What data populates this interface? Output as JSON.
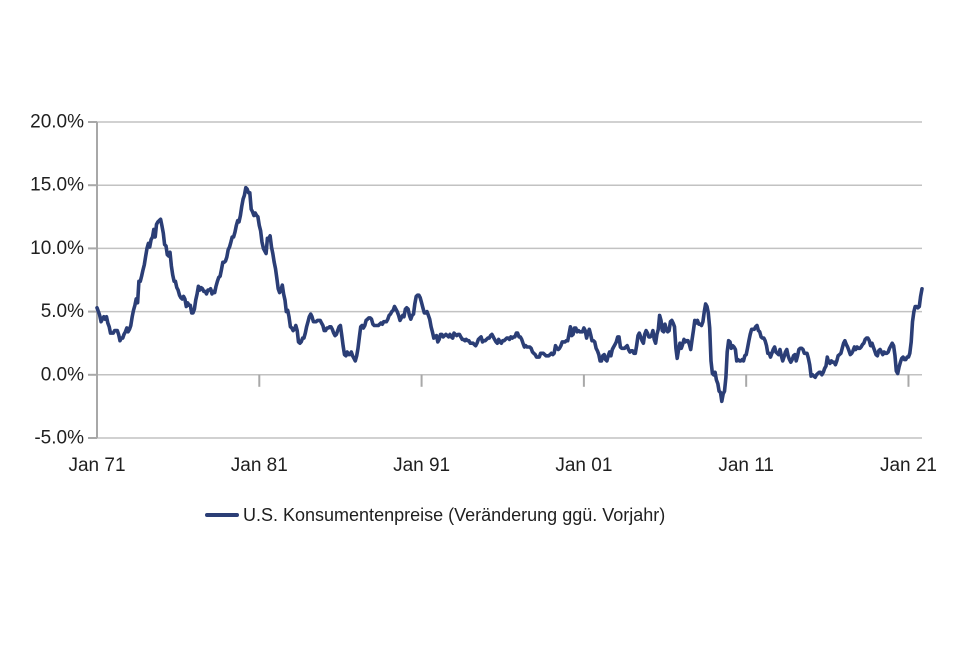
{
  "legend": {
    "label": "U.S. Konsumentenpreise (Veränderung ggü. Vorjahr)"
  },
  "chart_data": {
    "type": "line",
    "title": "",
    "xlabel": "",
    "ylabel": "",
    "x_unit": "monthly",
    "x_start_label": "Jan 71",
    "x_end_label": "Jan 21",
    "y_range": [
      -5.0,
      20.0
    ],
    "grid": "horizontal",
    "legend_position": "bottom",
    "colors": {
      "line": "#2b3e76",
      "grid": "#c2c2c2",
      "axis": "#a8a8a8",
      "text": "#1f1f1f"
    },
    "y_ticks": [
      {
        "label": "20.0%",
        "value": 20.0
      },
      {
        "label": "15.0%",
        "value": 15.0
      },
      {
        "label": "10.0%",
        "value": 10.0
      },
      {
        "label": "5.0%",
        "value": 5.0
      },
      {
        "label": "0.0%",
        "value": 0.0
      },
      {
        "label": "-5.0%",
        "value": -5.0
      }
    ],
    "x_ticks": [
      {
        "label": "Jan 71",
        "month_index": 0
      },
      {
        "label": "Jan 81",
        "month_index": 120
      },
      {
        "label": "Jan 91",
        "month_index": 240
      },
      {
        "label": "Jan 01",
        "month_index": 360
      },
      {
        "label": "Jan 11",
        "month_index": 480
      },
      {
        "label": "Jan 21",
        "month_index": 600
      }
    ],
    "series": [
      {
        "name": "U.S. Konsumentenpreise (Veränderung ggü. Vorjahr)",
        "x_monthly_from": "Jan 1971",
        "x_monthly_to": "Nov 2021",
        "values": [
          5.3,
          5.0,
          4.7,
          4.2,
          4.4,
          4.6,
          4.4,
          4.6,
          4.1,
          3.8,
          3.3,
          3.3,
          3.3,
          3.5,
          3.5,
          3.5,
          3.2,
          2.7,
          2.9,
          2.9,
          3.2,
          3.4,
          3.7,
          3.4,
          3.6,
          3.9,
          4.6,
          5.1,
          5.5,
          6.0,
          5.7,
          7.4,
          7.4,
          7.8,
          8.3,
          8.7,
          9.4,
          10.0,
          10.4,
          10.1,
          10.7,
          10.9,
          11.5,
          10.9,
          11.9,
          12.1,
          12.2,
          12.3,
          11.8,
          11.2,
          10.3,
          10.2,
          9.5,
          9.4,
          9.7,
          8.6,
          7.9,
          7.4,
          7.4,
          6.9,
          6.7,
          6.3,
          6.1,
          6.0,
          6.2,
          6.0,
          5.4,
          5.7,
          5.5,
          5.5,
          4.9,
          4.9,
          5.2,
          5.9,
          6.4,
          7.0,
          6.7,
          6.9,
          6.8,
          6.6,
          6.6,
          6.4,
          6.7,
          6.7,
          6.8,
          6.4,
          6.6,
          6.5,
          7.0,
          7.4,
          7.7,
          7.8,
          8.3,
          8.9,
          8.9,
          9.0,
          9.3,
          9.9,
          10.1,
          10.5,
          10.9,
          10.9,
          11.3,
          11.8,
          12.2,
          12.1,
          12.6,
          13.3,
          13.9,
          14.2,
          14.8,
          14.7,
          14.4,
          14.4,
          13.1,
          12.9,
          12.6,
          12.8,
          12.6,
          12.5,
          11.8,
          11.4,
          10.5,
          10.0,
          9.8,
          9.6,
          10.8,
          10.8,
          11.0,
          10.1,
          9.6,
          8.9,
          8.4,
          7.6,
          6.8,
          6.5,
          6.7,
          7.1,
          6.4,
          5.9,
          5.0,
          5.1,
          4.6,
          3.8,
          3.7,
          3.5,
          3.6,
          3.9,
          3.5,
          2.6,
          2.5,
          2.6,
          2.9,
          2.9,
          3.3,
          3.8,
          4.2,
          4.6,
          4.8,
          4.6,
          4.2,
          4.2,
          4.2,
          4.3,
          4.3,
          4.3,
          4.1,
          3.9,
          3.5,
          3.5,
          3.7,
          3.7,
          3.8,
          3.8,
          3.6,
          3.3,
          3.1,
          3.2,
          3.5,
          3.8,
          3.9,
          3.1,
          2.3,
          1.6,
          1.5,
          1.8,
          1.6,
          1.6,
          1.8,
          1.5,
          1.3,
          1.1,
          1.5,
          2.1,
          3.0,
          3.8,
          3.9,
          3.7,
          3.9,
          4.3,
          4.4,
          4.5,
          4.5,
          4.4,
          4.0,
          3.9,
          3.9,
          3.9,
          3.9,
          4.0,
          4.1,
          4.0,
          4.2,
          4.2,
          4.2,
          4.4,
          4.7,
          4.8,
          5.0,
          5.1,
          5.4,
          5.2,
          5.0,
          4.7,
          4.3,
          4.5,
          4.7,
          4.6,
          5.2,
          5.3,
          5.2,
          4.7,
          4.4,
          4.7,
          4.8,
          5.6,
          6.2,
          6.3,
          6.3,
          6.1,
          5.7,
          5.3,
          4.9,
          4.9,
          5.0,
          4.7,
          4.4,
          3.8,
          3.4,
          2.9,
          3.0,
          3.1,
          2.6,
          2.8,
          3.2,
          3.2,
          3.0,
          3.1,
          3.2,
          3.1,
          3.0,
          3.2,
          3.0,
          2.9,
          3.3,
          3.2,
          3.1,
          3.2,
          3.2,
          3.0,
          2.8,
          2.8,
          2.7,
          2.8,
          2.7,
          2.7,
          2.5,
          2.5,
          2.5,
          2.4,
          2.3,
          2.5,
          2.8,
          2.9,
          3.0,
          2.6,
          2.7,
          2.7,
          2.8,
          2.9,
          2.9,
          3.1,
          3.2,
          3.0,
          2.8,
          2.6,
          2.5,
          2.8,
          2.6,
          2.5,
          2.7,
          2.7,
          2.8,
          2.9,
          2.9,
          2.8,
          3.0,
          2.9,
          3.0,
          3.0,
          3.3,
          3.3,
          3.0,
          3.0,
          2.8,
          2.5,
          2.2,
          2.3,
          2.2,
          2.2,
          2.2,
          2.1,
          1.8,
          1.7,
          1.6,
          1.4,
          1.4,
          1.4,
          1.7,
          1.7,
          1.7,
          1.6,
          1.5,
          1.5,
          1.5,
          1.6,
          1.7,
          1.6,
          1.7,
          2.3,
          2.1,
          2.0,
          2.1,
          2.3,
          2.6,
          2.6,
          2.6,
          2.7,
          2.7,
          3.2,
          3.8,
          3.1,
          3.2,
          3.7,
          3.7,
          3.4,
          3.5,
          3.4,
          3.4,
          3.4,
          3.7,
          3.5,
          2.9,
          3.3,
          3.6,
          3.2,
          2.7,
          2.7,
          2.6,
          2.1,
          1.9,
          1.6,
          1.1,
          1.1,
          1.5,
          1.6,
          1.2,
          1.1,
          1.5,
          1.8,
          1.5,
          2.0,
          2.2,
          2.4,
          2.6,
          3.0,
          3.0,
          2.2,
          2.1,
          2.1,
          2.1,
          2.2,
          2.3,
          2.0,
          1.8,
          1.9,
          1.9,
          1.7,
          1.7,
          2.3,
          3.1,
          3.3,
          3.0,
          2.7,
          2.5,
          3.2,
          3.5,
          3.3,
          3.0,
          3.0,
          3.1,
          3.5,
          2.8,
          2.5,
          3.2,
          3.6,
          4.7,
          4.3,
          3.5,
          3.4,
          4.0,
          3.6,
          3.4,
          3.5,
          4.2,
          4.3,
          4.1,
          3.8,
          2.1,
          1.3,
          2.0,
          2.5,
          2.1,
          2.4,
          2.8,
          2.6,
          2.7,
          2.7,
          2.4,
          2.0,
          2.8,
          3.5,
          4.3,
          4.1,
          4.3,
          4.0,
          4.0,
          3.9,
          4.2,
          5.0,
          5.6,
          5.4,
          4.9,
          3.7,
          1.1,
          0.1,
          0.0,
          0.2,
          -0.4,
          -0.7,
          -1.3,
          -1.4,
          -2.1,
          -1.5,
          -1.3,
          -0.2,
          1.8,
          2.7,
          2.6,
          2.1,
          2.3,
          2.2,
          2.0,
          1.1,
          1.2,
          1.1,
          1.1,
          1.2,
          1.1,
          1.5,
          1.6,
          2.1,
          2.7,
          3.2,
          3.6,
          3.6,
          3.6,
          3.8,
          3.9,
          3.5,
          3.4,
          3.0,
          2.9,
          2.9,
          2.7,
          2.3,
          1.7,
          1.7,
          1.4,
          1.7,
          2.0,
          2.2,
          1.8,
          1.7,
          1.6,
          2.0,
          1.5,
          1.1,
          1.4,
          1.8,
          2.0,
          1.5,
          1.2,
          1.0,
          1.2,
          1.5,
          1.6,
          1.1,
          1.5,
          2.0,
          2.1,
          2.1,
          2.0,
          1.7,
          1.7,
          1.7,
          1.3,
          0.8,
          -0.1,
          0.0,
          -0.1,
          -0.2,
          0.0,
          0.1,
          0.2,
          0.2,
          0.0,
          0.2,
          0.5,
          0.7,
          1.4,
          1.0,
          0.9,
          1.1,
          1.0,
          1.0,
          0.8,
          1.1,
          1.5,
          1.6,
          1.7,
          2.1,
          2.5,
          2.7,
          2.4,
          2.2,
          1.9,
          1.6,
          1.7,
          1.9,
          2.2,
          2.0,
          2.2,
          2.1,
          2.1,
          2.2,
          2.4,
          2.5,
          2.8,
          2.9,
          2.9,
          2.7,
          2.3,
          2.5,
          2.2,
          1.9,
          1.6,
          1.5,
          1.9,
          2.0,
          1.8,
          1.6,
          1.8,
          1.7,
          1.7,
          1.8,
          2.1,
          2.3,
          2.5,
          2.3,
          1.5,
          0.3,
          0.1,
          0.6,
          1.0,
          1.3,
          1.4,
          1.2,
          1.2,
          1.4,
          1.4,
          1.7,
          2.6,
          4.2,
          5.0,
          5.4,
          5.4,
          5.3,
          5.4,
          6.2,
          6.8
        ]
      }
    ]
  }
}
